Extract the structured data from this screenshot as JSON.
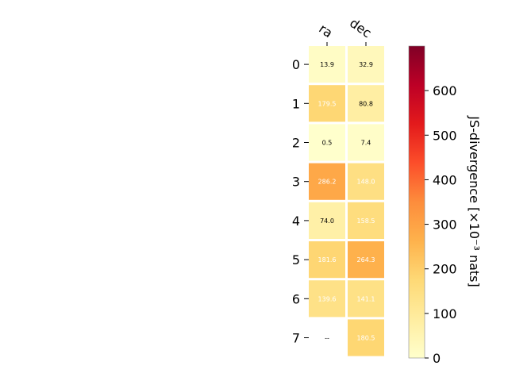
{
  "chart_data": {
    "type": "heatmap",
    "columns": [
      "ra",
      "dec"
    ],
    "rows": [
      "0",
      "1",
      "2",
      "3",
      "4",
      "5",
      "6",
      "7"
    ],
    "values": [
      [
        13.9,
        32.9
      ],
      [
        179.5,
        80.8
      ],
      [
        0.5,
        7.4
      ],
      [
        286.2,
        148.0
      ],
      [
        74.0,
        158.5
      ],
      [
        181.6,
        264.3
      ],
      [
        139.6,
        141.1
      ],
      [
        null,
        180.5
      ]
    ],
    "cell_labels": [
      [
        "13.9",
        "32.9"
      ],
      [
        "179.5",
        "80.8"
      ],
      [
        "0.5",
        "7.4"
      ],
      [
        "286.2",
        "148.0"
      ],
      [
        "74.0",
        "158.5"
      ],
      [
        "181.6",
        "264.3"
      ],
      [
        "139.6",
        "141.1"
      ],
      [
        "--",
        "180.5"
      ]
    ],
    "colorbar": {
      "label": "JS-divergence [×10⁻³ nats]",
      "range": [
        0,
        700
      ],
      "ticks": [
        0,
        100,
        200,
        300,
        400,
        500,
        600
      ],
      "colormap": "YlOrRd"
    }
  }
}
